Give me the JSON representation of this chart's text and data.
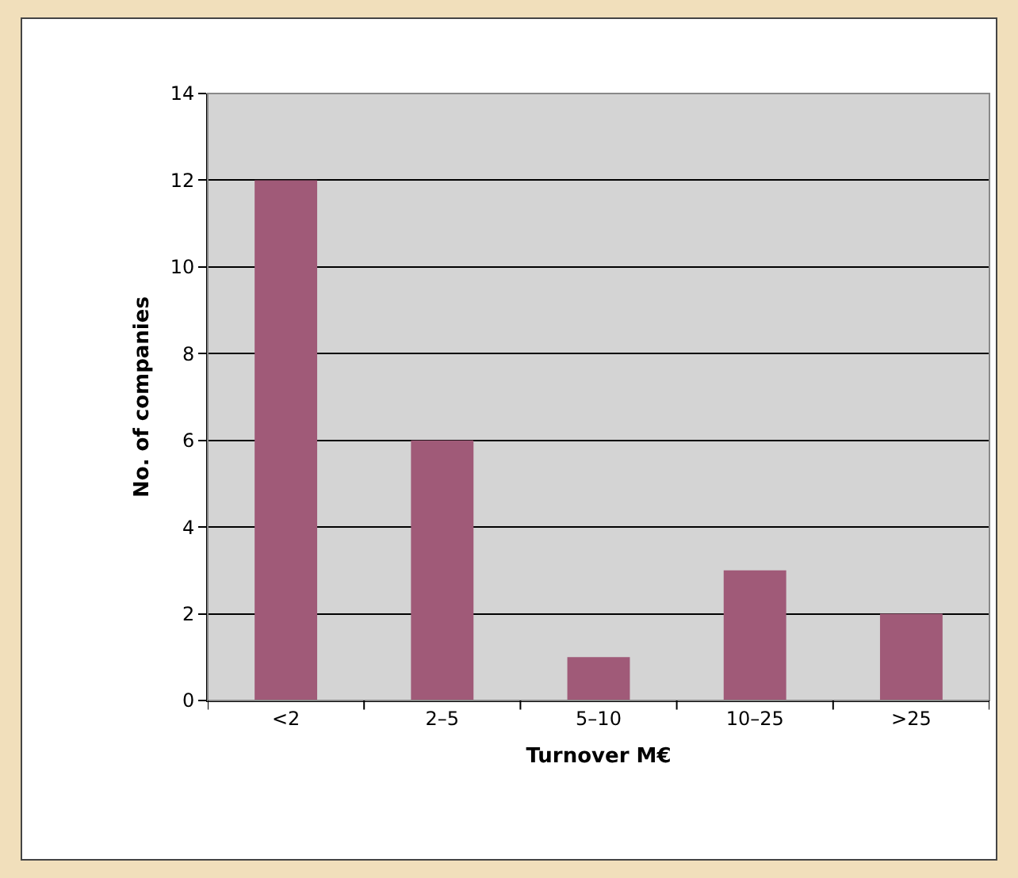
{
  "chart_data": {
    "type": "bar",
    "xlabel": "Turnover M€",
    "ylabel": "No. of companies",
    "categories": [
      "<2",
      "2–5",
      "5–10",
      "10–25",
      ">25"
    ],
    "values": [
      12,
      6,
      1,
      3,
      2
    ],
    "color": "#a05a78",
    "ylim": [
      0,
      14
    ],
    "yticks": [
      0,
      2,
      4,
      6,
      8,
      10,
      12,
      14
    ],
    "grid": "y"
  }
}
